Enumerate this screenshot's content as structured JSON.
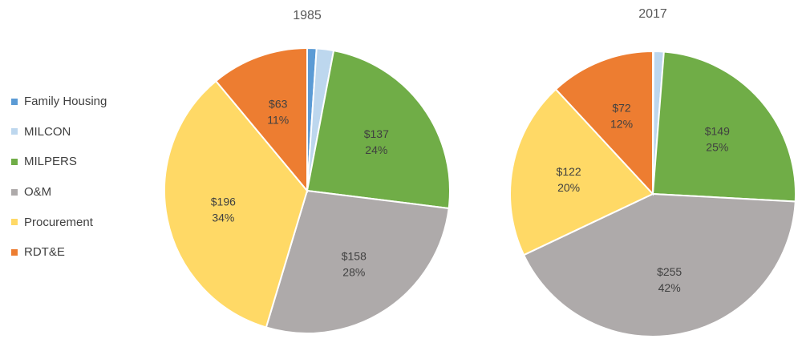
{
  "chart_data": [
    {
      "type": "pie",
      "title": "1985",
      "categories": [
        "Family Housing",
        "MILCON",
        "MILPERS",
        "O&M",
        "Procurement",
        "RDT&E"
      ],
      "values": [
        6,
        11,
        137,
        158,
        196,
        63
      ],
      "labels": [
        {
          "value": "",
          "percent": ""
        },
        {
          "value": "",
          "percent": ""
        },
        {
          "value": "$137",
          "percent": "24%"
        },
        {
          "value": "$158",
          "percent": "28%"
        },
        {
          "value": "$196",
          "percent": "34%"
        },
        {
          "value": "$63",
          "percent": "11%"
        }
      ],
      "legend": "left"
    },
    {
      "type": "pie",
      "title": "2017",
      "categories": [
        "Family Housing",
        "MILCON",
        "MILPERS",
        "O&M",
        "Procurement",
        "RDT&E"
      ],
      "values": [
        0.5,
        7,
        149,
        255,
        122,
        72
      ],
      "labels": [
        {
          "value": "",
          "percent": ""
        },
        {
          "value": "",
          "percent": ""
        },
        {
          "value": "$149",
          "percent": "25%"
        },
        {
          "value": "$255",
          "percent": "42%"
        },
        {
          "value": "$122",
          "percent": "20%"
        },
        {
          "value": "$72",
          "percent": "12%"
        }
      ],
      "legend": "left"
    }
  ],
  "legend": {
    "items": [
      {
        "label": "Family Housing",
        "color": "#5b9bd5"
      },
      {
        "label": "MILCON",
        "color": "#bdd7ee"
      },
      {
        "label": "MILPERS",
        "color": "#70ad47"
      },
      {
        "label": "O&M",
        "color": "#aeaaaa"
      },
      {
        "label": "Procurement",
        "color": "#ffd966"
      },
      {
        "label": "RDT&E",
        "color": "#ed7d31"
      }
    ]
  },
  "colors": {
    "label_text": "#404040",
    "title_text": "#595959",
    "slice_border": "#ffffff"
  }
}
